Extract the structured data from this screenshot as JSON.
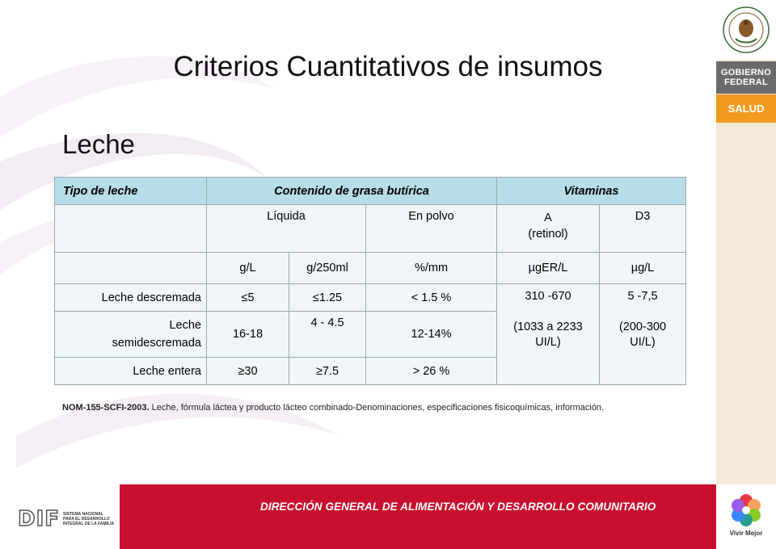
{
  "title": "Criterios Cuantitativos de insumos",
  "subtitle": "Leche",
  "table": {
    "header": {
      "type": "Tipo de leche",
      "fat": "Contenido de grasa butírica",
      "vitamins": "Vitaminas"
    },
    "subheader": {
      "liquid": "Líquida",
      "powder": "En polvo",
      "vit_a": "A\n(retinol)",
      "vit_d3": "D3"
    },
    "units": {
      "gl": "g/L",
      "g250": "g/250ml",
      "pct": "%/mm",
      "ugerl": "µgER/L",
      "ugl": "µg/L"
    },
    "rows": [
      {
        "type": "Leche descremada",
        "gl": "≤5",
        "g250": "≤1.25",
        "pct": "< 1.5 %"
      },
      {
        "type": "Leche semidescremada",
        "gl": "16-18",
        "g250": "4 - 4.5",
        "pct": "12-14%"
      },
      {
        "type": "Leche entera",
        "gl": "≥30",
        "g250": "≥7.5",
        "pct": "> 26 %"
      }
    ],
    "vit_a_value": "310 -670",
    "vit_a_range": "(1033 a 2233 UI/L)",
    "vit_d3_value": "5 -7,5",
    "vit_d3_range": "(200-300 UI/L)"
  },
  "reference": {
    "code": "NOM-155-SCFI-2003.",
    "text": "Leche, fórmula láctea y producto lácteo combinado-Denominaciones, especificaciones fisicoquímicas, información."
  },
  "branding": {
    "gobierno_line1": "GOBIERNO",
    "gobierno_line2": "FEDERAL",
    "salud": "SALUD",
    "footer": "DIRECCIÓN GENERAL DE ALIMENTACIÓN Y DESARROLLO COMUNITARIO",
    "dif": "DIF",
    "dif_line1": "SISTEMA NACIONAL",
    "dif_line2": "PARA EL DESARROLLO",
    "dif_line3": "INTEGRAL DE LA FAMILIA",
    "vivir_mejor": "Vivir Mejor",
    "seal_icon": "mexico-seal-icon",
    "vivir_icon": "vivir-mejor-flower-icon"
  },
  "colors": {
    "header_cell": "#b7dde8",
    "cell": "#f0f6f8",
    "footer_bar": "#c8102e",
    "salud": "#f29a1e",
    "gobierno": "#6b6b6b",
    "side_column": "#f3e9d6"
  }
}
